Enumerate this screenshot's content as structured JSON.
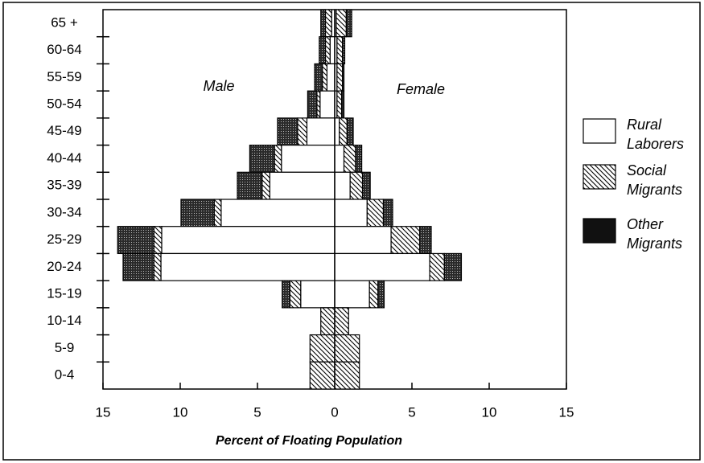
{
  "chart_data": {
    "type": "pyramid",
    "sides": [
      "Male",
      "Female"
    ],
    "xlabel": "Percent of Floating Population",
    "categories": [
      "65 +",
      "60-64",
      "55-59",
      "50-54",
      "45-49",
      "40-44",
      "35-39",
      "30-34",
      "25-29",
      "20-24",
      "15-19",
      "10-14",
      "5-9",
      "0-4"
    ],
    "xlim": [
      -15,
      15
    ],
    "xticks": [
      {
        "value": -15,
        "label": "15"
      },
      {
        "value": -10,
        "label": "10"
      },
      {
        "value": -5,
        "label": "5"
      },
      0,
      5,
      10,
      15
    ],
    "series": [
      {
        "name": "Rural Laborers",
        "pattern": "none",
        "male": [
          0.2,
          0.3,
          0.5,
          0.95,
          1.8,
          3.45,
          4.2,
          7.35,
          11.2,
          11.25,
          2.2,
          0,
          0,
          0
        ],
        "female": [
          0.1,
          0.15,
          0.15,
          0.15,
          0.3,
          0.6,
          1.0,
          2.1,
          3.65,
          6.15,
          2.25,
          0,
          0,
          0
        ]
      },
      {
        "name": "Social Migrants",
        "pattern": "hatch",
        "male": [
          0.4,
          0.3,
          0.3,
          0.2,
          0.6,
          0.45,
          0.5,
          0.45,
          0.5,
          0.45,
          0.7,
          0.9,
          1.6,
          1.6
        ],
        "female": [
          0.65,
          0.35,
          0.35,
          0.3,
          0.5,
          0.75,
          0.8,
          1.05,
          1.85,
          0.95,
          0.55,
          0.9,
          1.6,
          1.6
        ]
      },
      {
        "name": "Other Migrants",
        "pattern": "stipple",
        "male": [
          0.3,
          0.4,
          0.5,
          0.6,
          1.3,
          1.6,
          1.6,
          2.15,
          2.35,
          2.0,
          0.5,
          0,
          0,
          0
        ],
        "female": [
          0.35,
          0.15,
          0.1,
          0.15,
          0.4,
          0.4,
          0.5,
          0.6,
          0.75,
          1.1,
          0.4,
          0,
          0,
          0
        ]
      }
    ]
  }
}
